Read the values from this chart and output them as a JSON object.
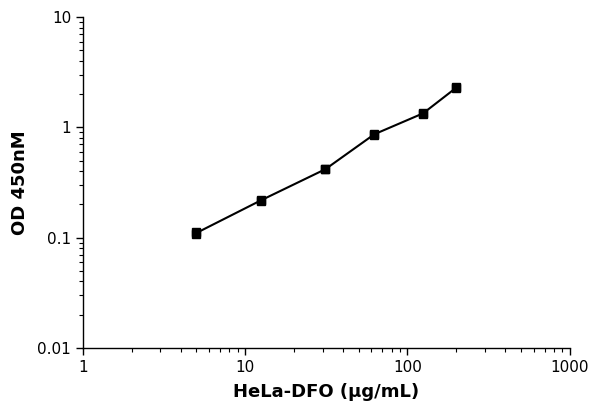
{
  "x": [
    5.0,
    5.0,
    12.5,
    12.5,
    31.25,
    31.25,
    62.5,
    62.5,
    125.0,
    125.0,
    200.0,
    200.0
  ],
  "y": [
    0.112,
    0.108,
    0.22,
    0.215,
    0.42,
    0.415,
    0.87,
    0.86,
    1.35,
    1.33,
    2.3,
    2.28
  ],
  "line_x": [
    5.0,
    12.5,
    31.25,
    62.5,
    125.0,
    200.0
  ],
  "line_y": [
    0.11,
    0.2175,
    0.4175,
    0.865,
    1.34,
    2.29
  ],
  "xlabel": "HeLa-DFO (µg/mL)",
  "ylabel": "OD 450nM",
  "xlim": [
    1,
    1000
  ],
  "ylim": [
    0.01,
    10
  ],
  "marker_color": "#000000",
  "line_color": "#000000",
  "marker": "s",
  "marker_size": 6,
  "line_width": 1.5,
  "background_color": "#ffffff",
  "xlabel_fontsize": 13,
  "ylabel_fontsize": 13,
  "tick_fontsize": 11
}
